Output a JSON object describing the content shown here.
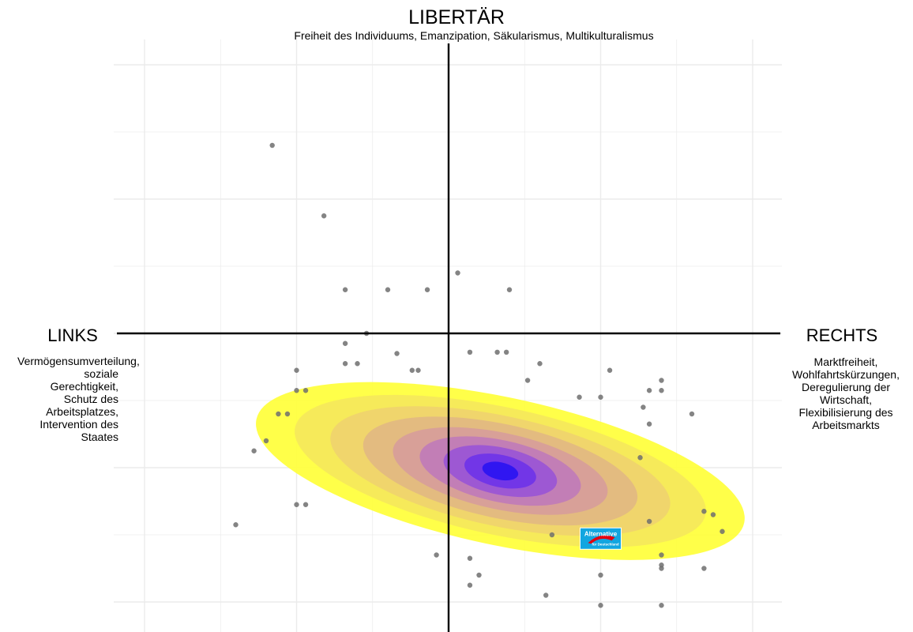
{
  "labels": {
    "top_title": "LIBERTÄR",
    "top_subtitle": "Freiheit des Individuums, Emanzipation, Säkularismus, Multikulturalismus",
    "left_title": "LINKS",
    "left_desc": "Vermögensumverteilung, soziale Gerechtigkeit, Schutz des Arbeitsplatzes, Intervention des Staates",
    "right_title": "RECHTS",
    "right_desc": "Marktfreiheit, Wohlfahrtskürzungen, Deregulierung der Wirtschaft, Flexibilisierung des Arbeitsmarkts"
  },
  "logo": {
    "text_main": "Alternative",
    "text_sub": "für Deutschland",
    "color_bg": "#12a6e0",
    "color_accent": "#e3000f",
    "x": 2.5,
    "y": -3.05
  },
  "colors": {
    "grid": "#ebebeb",
    "axis": "#000000",
    "point": "#6e6e6e",
    "density": [
      "#ffff3a",
      "#f5e85c",
      "#efd36e",
      "#e2b882",
      "#d79d9a",
      "#c07bb8",
      "#9a55d6",
      "#6f33e8",
      "#2a14f2"
    ]
  },
  "chart_data": {
    "type": "scatter",
    "xlim": [
      -5.5,
      5.5
    ],
    "ylim": [
      -4.5,
      4.5
    ],
    "grid": true,
    "density_overlay": true,
    "points": [
      [
        -2.9,
        2.8
      ],
      [
        -2.05,
        1.75
      ],
      [
        -1.7,
        0.65
      ],
      [
        -1.0,
        0.65
      ],
      [
        -0.35,
        0.65
      ],
      [
        0.15,
        0.9
      ],
      [
        1.0,
        0.65
      ],
      [
        -1.35,
        0.0
      ],
      [
        -1.7,
        -0.15
      ],
      [
        -0.85,
        -0.3
      ],
      [
        0.35,
        -0.28
      ],
      [
        0.8,
        -0.28
      ],
      [
        0.95,
        -0.28
      ],
      [
        -1.7,
        -0.45
      ],
      [
        -1.5,
        -0.45
      ],
      [
        1.5,
        -0.45
      ],
      [
        -2.5,
        -0.55
      ],
      [
        -0.6,
        -0.55
      ],
      [
        -0.5,
        -0.55
      ],
      [
        1.3,
        -0.7
      ],
      [
        2.65,
        -0.55
      ],
      [
        -2.5,
        -0.85
      ],
      [
        -2.35,
        -0.85
      ],
      [
        3.5,
        -0.7
      ],
      [
        3.5,
        -0.85
      ],
      [
        3.3,
        -0.85
      ],
      [
        2.15,
        -0.95
      ],
      [
        2.5,
        -0.95
      ],
      [
        3.2,
        -1.1
      ],
      [
        4.0,
        -1.2
      ],
      [
        3.3,
        -1.35
      ],
      [
        -2.8,
        -1.2
      ],
      [
        -2.65,
        -1.2
      ],
      [
        -3.0,
        -1.6
      ],
      [
        -3.2,
        -1.75
      ],
      [
        3.15,
        -1.85
      ],
      [
        -2.5,
        -2.55
      ],
      [
        -2.35,
        -2.55
      ],
      [
        -3.5,
        -2.85
      ],
      [
        3.3,
        -2.8
      ],
      [
        4.2,
        -2.65
      ],
      [
        4.35,
        -2.7
      ],
      [
        4.5,
        -2.95
      ],
      [
        3.5,
        -3.3
      ],
      [
        3.5,
        -3.45
      ],
      [
        1.7,
        -3.0
      ],
      [
        2.5,
        -3.0
      ],
      [
        -0.2,
        -3.3
      ],
      [
        0.35,
        -3.35
      ],
      [
        0.5,
        -3.6
      ],
      [
        0.35,
        -3.75
      ],
      [
        1.6,
        -3.9
      ],
      [
        2.5,
        -3.6
      ],
      [
        3.5,
        -3.5
      ],
      [
        4.2,
        -3.5
      ],
      [
        2.5,
        -4.05
      ],
      [
        3.5,
        -4.05
      ]
    ]
  }
}
